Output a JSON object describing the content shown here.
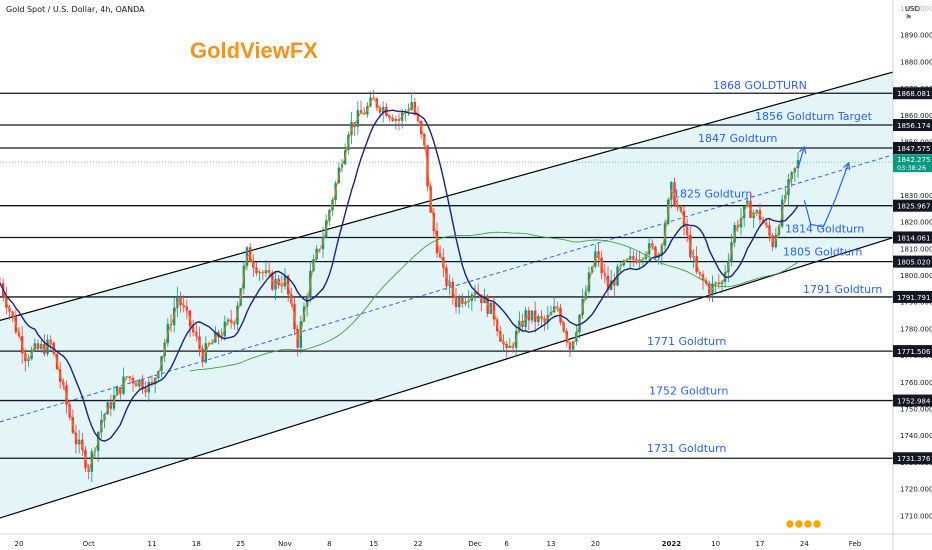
{
  "header": {
    "instrument": "Gold Spot / U.S. Dollar, 4h, OANDA",
    "brand": "GoldViewFX",
    "currency": "USD"
  },
  "colors": {
    "level_line": "#131722",
    "label_blue": "#2962ff",
    "channel_line": "#000000",
    "channel_fill": "#e1f4f7",
    "bull_candle": "#089981",
    "bear_candle": "#f23645",
    "ma_fast": "#f57c00",
    "ma_mid": "#1a237e",
    "ma_slow": "#43a047",
    "brand": "#f7931a"
  },
  "chart_data": {
    "type": "line",
    "title": "Gold Spot / U.S. Dollar, 4h, OANDA",
    "ylim": [
      1703,
      1903
    ],
    "y_ticks": [
      1710,
      1720,
      1730,
      1740,
      1750,
      1760,
      1770,
      1780,
      1790,
      1800,
      1810,
      1820,
      1830,
      1840,
      1850,
      1860,
      1870,
      1880,
      1890
    ],
    "y_tick_labels": [
      "1710.000",
      "1720.000",
      "1730.000",
      "1740.000",
      "1750.000",
      "1760.000",
      "1770.000",
      "1780.000",
      "1790.000",
      "1800.000",
      "1810.000",
      "1820.000",
      "1830.000",
      "1840.000",
      "1850.000",
      "1860.000",
      "1870.000",
      "1880.000",
      "1890.000"
    ],
    "top_tick_label": "1900.000",
    "x_ticks": [
      {
        "label": "20",
        "t": 0
      },
      {
        "label": "Oct",
        "t": 11
      },
      {
        "label": "11",
        "t": 21
      },
      {
        "label": "18",
        "t": 28
      },
      {
        "label": "25",
        "t": 35
      },
      {
        "label": "Nov",
        "t": 42
      },
      {
        "label": "8",
        "t": 49
      },
      {
        "label": "15",
        "t": 56
      },
      {
        "label": "22",
        "t": 63
      },
      {
        "label": "Dec",
        "t": 72
      },
      {
        "label": "6",
        "t": 77
      },
      {
        "label": "13",
        "t": 84
      },
      {
        "label": "20",
        "t": 91
      },
      {
        "label": "2022",
        "t": 103
      },
      {
        "label": "10",
        "t": 110
      },
      {
        "label": "17",
        "t": 117
      },
      {
        "label": "24",
        "t": 124
      },
      {
        "label": "Feb",
        "t": 132
      }
    ],
    "t_range": [
      -3,
      138
    ],
    "levels": [
      {
        "value": 1868.081,
        "label": "1868 GOLDTURN",
        "tag": "1868.081"
      },
      {
        "value": 1856.174,
        "label": "1856 Goldturn Target",
        "tag": "1856.174"
      },
      {
        "value": 1847.575,
        "label": "1847 Goldturn",
        "tag": "1847.575"
      },
      {
        "value": 1825.967,
        "label": "1825 Goldturn",
        "tag": "1825.967"
      },
      {
        "value": 1814.061,
        "label": "1814 Goldturn",
        "tag": "1814.061"
      },
      {
        "value": 1805.02,
        "label": "1805 Goldturn",
        "tag": "1805.020"
      },
      {
        "value": 1791.791,
        "label": "1791 Goldturn",
        "tag": "1791.791"
      },
      {
        "value": 1771.506,
        "label": "1771 Goldturn",
        "tag": "1771.506"
      },
      {
        "value": 1752.984,
        "label": "1752 Goldturn",
        "tag": "1752.984"
      },
      {
        "value": 1731.376,
        "label": "1731 Goldturn",
        "tag": "1731.376"
      }
    ],
    "current_price": {
      "value": 1842.275,
      "label": "1842.275",
      "countdown": "03:38:26"
    },
    "channel": {
      "upper": [
        [
          -3,
          1783
        ],
        [
          138,
          1876
        ]
      ],
      "lower": [
        [
          -3,
          1709
        ],
        [
          138,
          1814
        ]
      ],
      "mid": [
        [
          -3,
          1745
        ],
        [
          138,
          1845
        ]
      ]
    },
    "price_path": [
      [
        -3,
        1797
      ],
      [
        1,
        1770
      ],
      [
        5,
        1774
      ],
      [
        9,
        1738
      ],
      [
        11,
        1728
      ],
      [
        13,
        1746
      ],
      [
        17,
        1762
      ],
      [
        21,
        1758
      ],
      [
        25,
        1792
      ],
      [
        29,
        1770
      ],
      [
        31,
        1776
      ],
      [
        34,
        1784
      ],
      [
        36,
        1808
      ],
      [
        38,
        1802
      ],
      [
        40,
        1797
      ],
      [
        42,
        1798
      ],
      [
        44,
        1775
      ],
      [
        46,
        1800
      ],
      [
        48,
        1815
      ],
      [
        50,
        1834
      ],
      [
        52,
        1855
      ],
      [
        54,
        1860
      ],
      [
        56,
        1865
      ],
      [
        58,
        1862
      ],
      [
        60,
        1858
      ],
      [
        62,
        1865
      ],
      [
        64,
        1847
      ],
      [
        65,
        1822
      ],
      [
        67,
        1800
      ],
      [
        69,
        1790
      ],
      [
        72,
        1795
      ],
      [
        75,
        1785
      ],
      [
        77,
        1770
      ],
      [
        80,
        1785
      ],
      [
        83,
        1782
      ],
      [
        85,
        1788
      ],
      [
        87,
        1773
      ],
      [
        89,
        1789
      ],
      [
        91,
        1808
      ],
      [
        93,
        1795
      ],
      [
        95,
        1802
      ],
      [
        97,
        1806
      ],
      [
        99,
        1810
      ],
      [
        101,
        1808
      ],
      [
        103,
        1832
      ],
      [
        105,
        1818
      ],
      [
        107,
        1800
      ],
      [
        109,
        1795
      ],
      [
        111,
        1797
      ],
      [
        113,
        1818
      ],
      [
        115,
        1825
      ],
      [
        117,
        1822
      ],
      [
        119,
        1812
      ],
      [
        121,
        1830
      ],
      [
        123,
        1842
      ]
    ],
    "projection": [
      [
        [
          123,
          1840
        ],
        [
          124,
          1848
        ]
      ],
      [
        [
          124,
          1828
        ],
        [
          125,
          1819
        ],
        [
          127,
          1818
        ],
        [
          129,
          1829
        ],
        [
          131,
          1842
        ]
      ]
    ],
    "series": [
      {
        "name": "price",
        "color": "#f57c00"
      },
      {
        "name": "ma-fast",
        "color": "#1a237e"
      },
      {
        "name": "ma-slow",
        "color": "#43a047"
      }
    ]
  }
}
